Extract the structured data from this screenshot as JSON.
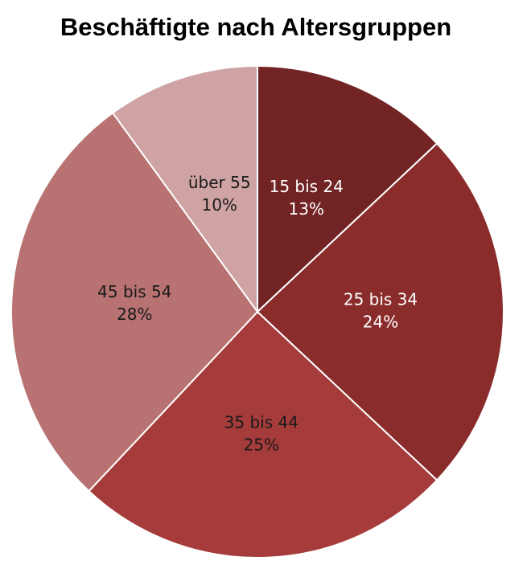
{
  "chart_data": {
    "type": "pie",
    "title": "Beschäftigte nach Altersgruppen",
    "categories": [
      "15 bis 24",
      "25 bis 34",
      "35 bis 44",
      "45 bis 54",
      "über 55"
    ],
    "values": [
      13,
      24,
      25,
      28,
      10
    ],
    "value_labels": [
      "13%",
      "24%",
      "25%",
      "28%",
      "10%"
    ],
    "colors": [
      "#722424",
      "#8b2c2c",
      "#a63b3b",
      "#b87272",
      "#cfa3a3"
    ],
    "label_colors": [
      "#ffffff",
      "#ffffff",
      "#1a1a1a",
      "#1a1a1a",
      "#1a1a1a"
    ]
  }
}
